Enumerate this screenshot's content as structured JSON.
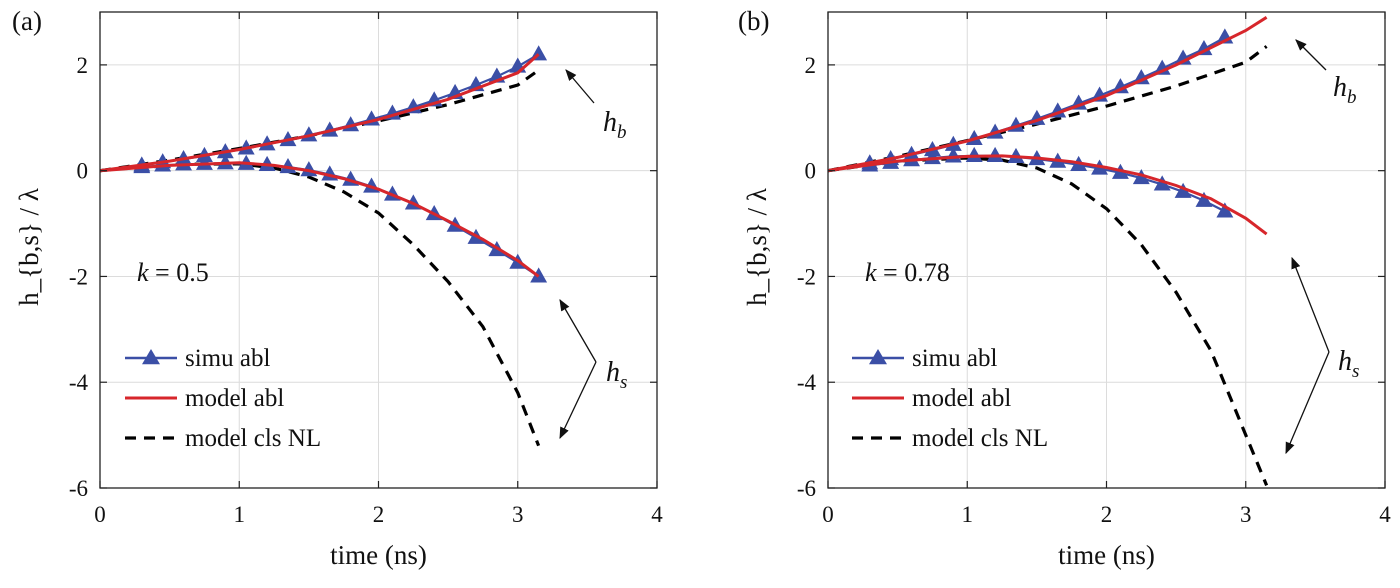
{
  "chart_data": [
    {
      "type": "line",
      "panel_label": "(a)",
      "xlabel": "time (ns)",
      "ylabel": "h_{b,s} / λ",
      "xlim": [
        0,
        4
      ],
      "ylim": [
        -6,
        3
      ],
      "xticks": [
        0,
        1,
        2,
        3,
        4
      ],
      "yticks": [
        2,
        0,
        -2,
        -4,
        -6
      ],
      "grid": true,
      "legend_position": "bottom-left",
      "parameter_text": {
        "symbol": "k",
        "rest": " = 0.5"
      },
      "annotations": [
        {
          "label_base": "h",
          "label_sub": "b",
          "target_series": "bubble"
        },
        {
          "label_base": "h",
          "label_sub": "s",
          "target_series": "spike"
        }
      ],
      "series": [
        {
          "name": "simu abl",
          "style": "triangle-line",
          "color": "#3b4fa6",
          "group": "bubble",
          "x": [
            0.3,
            0.45,
            0.6,
            0.75,
            0.9,
            1.05,
            1.2,
            1.35,
            1.5,
            1.65,
            1.8,
            1.95,
            2.1,
            2.25,
            2.4,
            2.55,
            2.7,
            2.85,
            3.0,
            3.15
          ],
          "y": [
            0.1,
            0.16,
            0.22,
            0.28,
            0.35,
            0.42,
            0.5,
            0.58,
            0.67,
            0.76,
            0.86,
            0.97,
            1.08,
            1.2,
            1.33,
            1.47,
            1.62,
            1.78,
            1.97,
            2.2
          ]
        },
        {
          "name": "simu abl",
          "style": "triangle-line",
          "color": "#3b4fa6",
          "group": "spike",
          "x": [
            0.3,
            0.45,
            0.6,
            0.75,
            0.9,
            1.05,
            1.2,
            1.35,
            1.5,
            1.65,
            1.8,
            1.95,
            2.1,
            2.25,
            2.4,
            2.55,
            2.7,
            2.85,
            3.0,
            3.15
          ],
          "y": [
            0.07,
            0.1,
            0.12,
            0.13,
            0.14,
            0.13,
            0.11,
            0.07,
            0.01,
            -0.07,
            -0.17,
            -0.3,
            -0.45,
            -0.62,
            -0.82,
            -1.04,
            -1.27,
            -1.5,
            -1.74,
            -2.0
          ]
        },
        {
          "name": "model abl",
          "style": "solid",
          "color": "#d7262b",
          "group": "bubble",
          "x": [
            0,
            0.5,
            1,
            1.5,
            2,
            2.5,
            3,
            3.15
          ],
          "y": [
            0,
            0.18,
            0.4,
            0.66,
            0.97,
            1.35,
            1.85,
            2.2
          ]
        },
        {
          "name": "model abl",
          "style": "solid",
          "color": "#d7262b",
          "group": "spike",
          "x": [
            0,
            0.5,
            1,
            1.25,
            1.5,
            1.75,
            2,
            2.25,
            2.5,
            2.75,
            3,
            3.15
          ],
          "y": [
            0,
            0.1,
            0.15,
            0.1,
            0.0,
            -0.15,
            -0.35,
            -0.62,
            -0.95,
            -1.3,
            -1.7,
            -2.0
          ]
        },
        {
          "name": "model cls  NL",
          "style": "dashed",
          "color": "#000000",
          "group": "bubble",
          "x": [
            0,
            0.5,
            1,
            1.5,
            2,
            2.5,
            3,
            3.15
          ],
          "y": [
            0,
            0.2,
            0.42,
            0.66,
            0.94,
            1.25,
            1.62,
            1.9
          ]
        },
        {
          "name": "model cls  NL",
          "style": "dashed",
          "color": "#000000",
          "group": "spike",
          "x": [
            0,
            0.5,
            1,
            1.25,
            1.5,
            1.75,
            2,
            2.25,
            2.5,
            2.75,
            3,
            3.15
          ],
          "y": [
            0,
            0.12,
            0.13,
            0.05,
            -0.12,
            -0.4,
            -0.8,
            -1.4,
            -2.1,
            -2.95,
            -4.2,
            -5.2
          ]
        }
      ],
      "legend": [
        {
          "label": "simu abl",
          "style": "triangle-line",
          "color": "#3b4fa6"
        },
        {
          "label": "model abl",
          "style": "solid",
          "color": "#d7262b"
        },
        {
          "label": "model cls  NL",
          "style": "dashed",
          "color": "#000000"
        }
      ]
    },
    {
      "type": "line",
      "panel_label": "(b)",
      "xlabel": "time (ns)",
      "ylabel": "h_{b,s} / λ",
      "xlim": [
        0,
        4
      ],
      "ylim": [
        -6,
        3
      ],
      "xticks": [
        0,
        1,
        2,
        3,
        4
      ],
      "yticks": [
        2,
        0,
        -2,
        -4,
        -6
      ],
      "grid": true,
      "legend_position": "bottom-left",
      "parameter_text": {
        "symbol": "k",
        "rest": " = 0.78"
      },
      "annotations": [
        {
          "label_base": "h",
          "label_sub": "b",
          "target_series": "bubble"
        },
        {
          "label_base": "h",
          "label_sub": "s",
          "target_series": "spike"
        }
      ],
      "series": [
        {
          "name": "simu abl",
          "style": "triangle-line",
          "color": "#3b4fa6",
          "group": "bubble",
          "x": [
            0.3,
            0.45,
            0.6,
            0.75,
            0.9,
            1.05,
            1.2,
            1.35,
            1.5,
            1.65,
            1.8,
            1.95,
            2.1,
            2.25,
            2.4,
            2.55,
            2.7,
            2.85
          ],
          "y": [
            0.14,
            0.22,
            0.3,
            0.39,
            0.49,
            0.6,
            0.72,
            0.85,
            0.98,
            1.12,
            1.27,
            1.42,
            1.58,
            1.75,
            1.93,
            2.12,
            2.3,
            2.52
          ]
        },
        {
          "name": "simu abl",
          "style": "triangle-line",
          "color": "#3b4fa6",
          "group": "spike",
          "x": [
            0.3,
            0.45,
            0.6,
            0.75,
            0.9,
            1.05,
            1.2,
            1.35,
            1.5,
            1.65,
            1.8,
            1.95,
            2.1,
            2.25,
            2.4,
            2.55,
            2.7,
            2.85
          ],
          "y": [
            0.1,
            0.15,
            0.2,
            0.24,
            0.27,
            0.28,
            0.28,
            0.26,
            0.22,
            0.17,
            0.11,
            0.04,
            -0.04,
            -0.14,
            -0.26,
            -0.4,
            -0.57,
            -0.77
          ]
        },
        {
          "name": "model abl",
          "style": "solid",
          "color": "#d7262b",
          "group": "bubble",
          "x": [
            0,
            0.5,
            1,
            1.5,
            2,
            2.5,
            3,
            3.15
          ],
          "y": [
            0,
            0.25,
            0.56,
            0.95,
            1.42,
            2.0,
            2.65,
            2.9
          ]
        },
        {
          "name": "model abl",
          "style": "solid",
          "color": "#d7262b",
          "group": "spike",
          "x": [
            0,
            0.5,
            1,
            1.25,
            1.5,
            1.75,
            2,
            2.25,
            2.5,
            2.75,
            3,
            3.15
          ],
          "y": [
            0,
            0.18,
            0.27,
            0.28,
            0.24,
            0.17,
            0.06,
            -0.08,
            -0.28,
            -0.53,
            -0.9,
            -1.2
          ]
        },
        {
          "name": "model cls  NL",
          "style": "dashed",
          "color": "#000000",
          "group": "bubble",
          "x": [
            0,
            0.5,
            1,
            1.5,
            2,
            2.5,
            3,
            3.15
          ],
          "y": [
            0,
            0.27,
            0.57,
            0.88,
            1.22,
            1.6,
            2.05,
            2.35
          ]
        },
        {
          "name": "model cls  NL",
          "style": "dashed",
          "color": "#000000",
          "group": "spike",
          "x": [
            0,
            0.5,
            1,
            1.25,
            1.5,
            1.75,
            2,
            2.25,
            2.5,
            2.75,
            3,
            3.15
          ],
          "y": [
            0,
            0.18,
            0.24,
            0.2,
            0.05,
            -0.25,
            -0.72,
            -1.4,
            -2.3,
            -3.4,
            -5.0,
            -5.95
          ]
        }
      ],
      "legend": [
        {
          "label": "simu abl",
          "style": "triangle-line",
          "color": "#3b4fa6"
        },
        {
          "label": "model abl",
          "style": "solid",
          "color": "#d7262b"
        },
        {
          "label": "model cls  NL",
          "style": "dashed",
          "color": "#000000"
        }
      ]
    }
  ]
}
